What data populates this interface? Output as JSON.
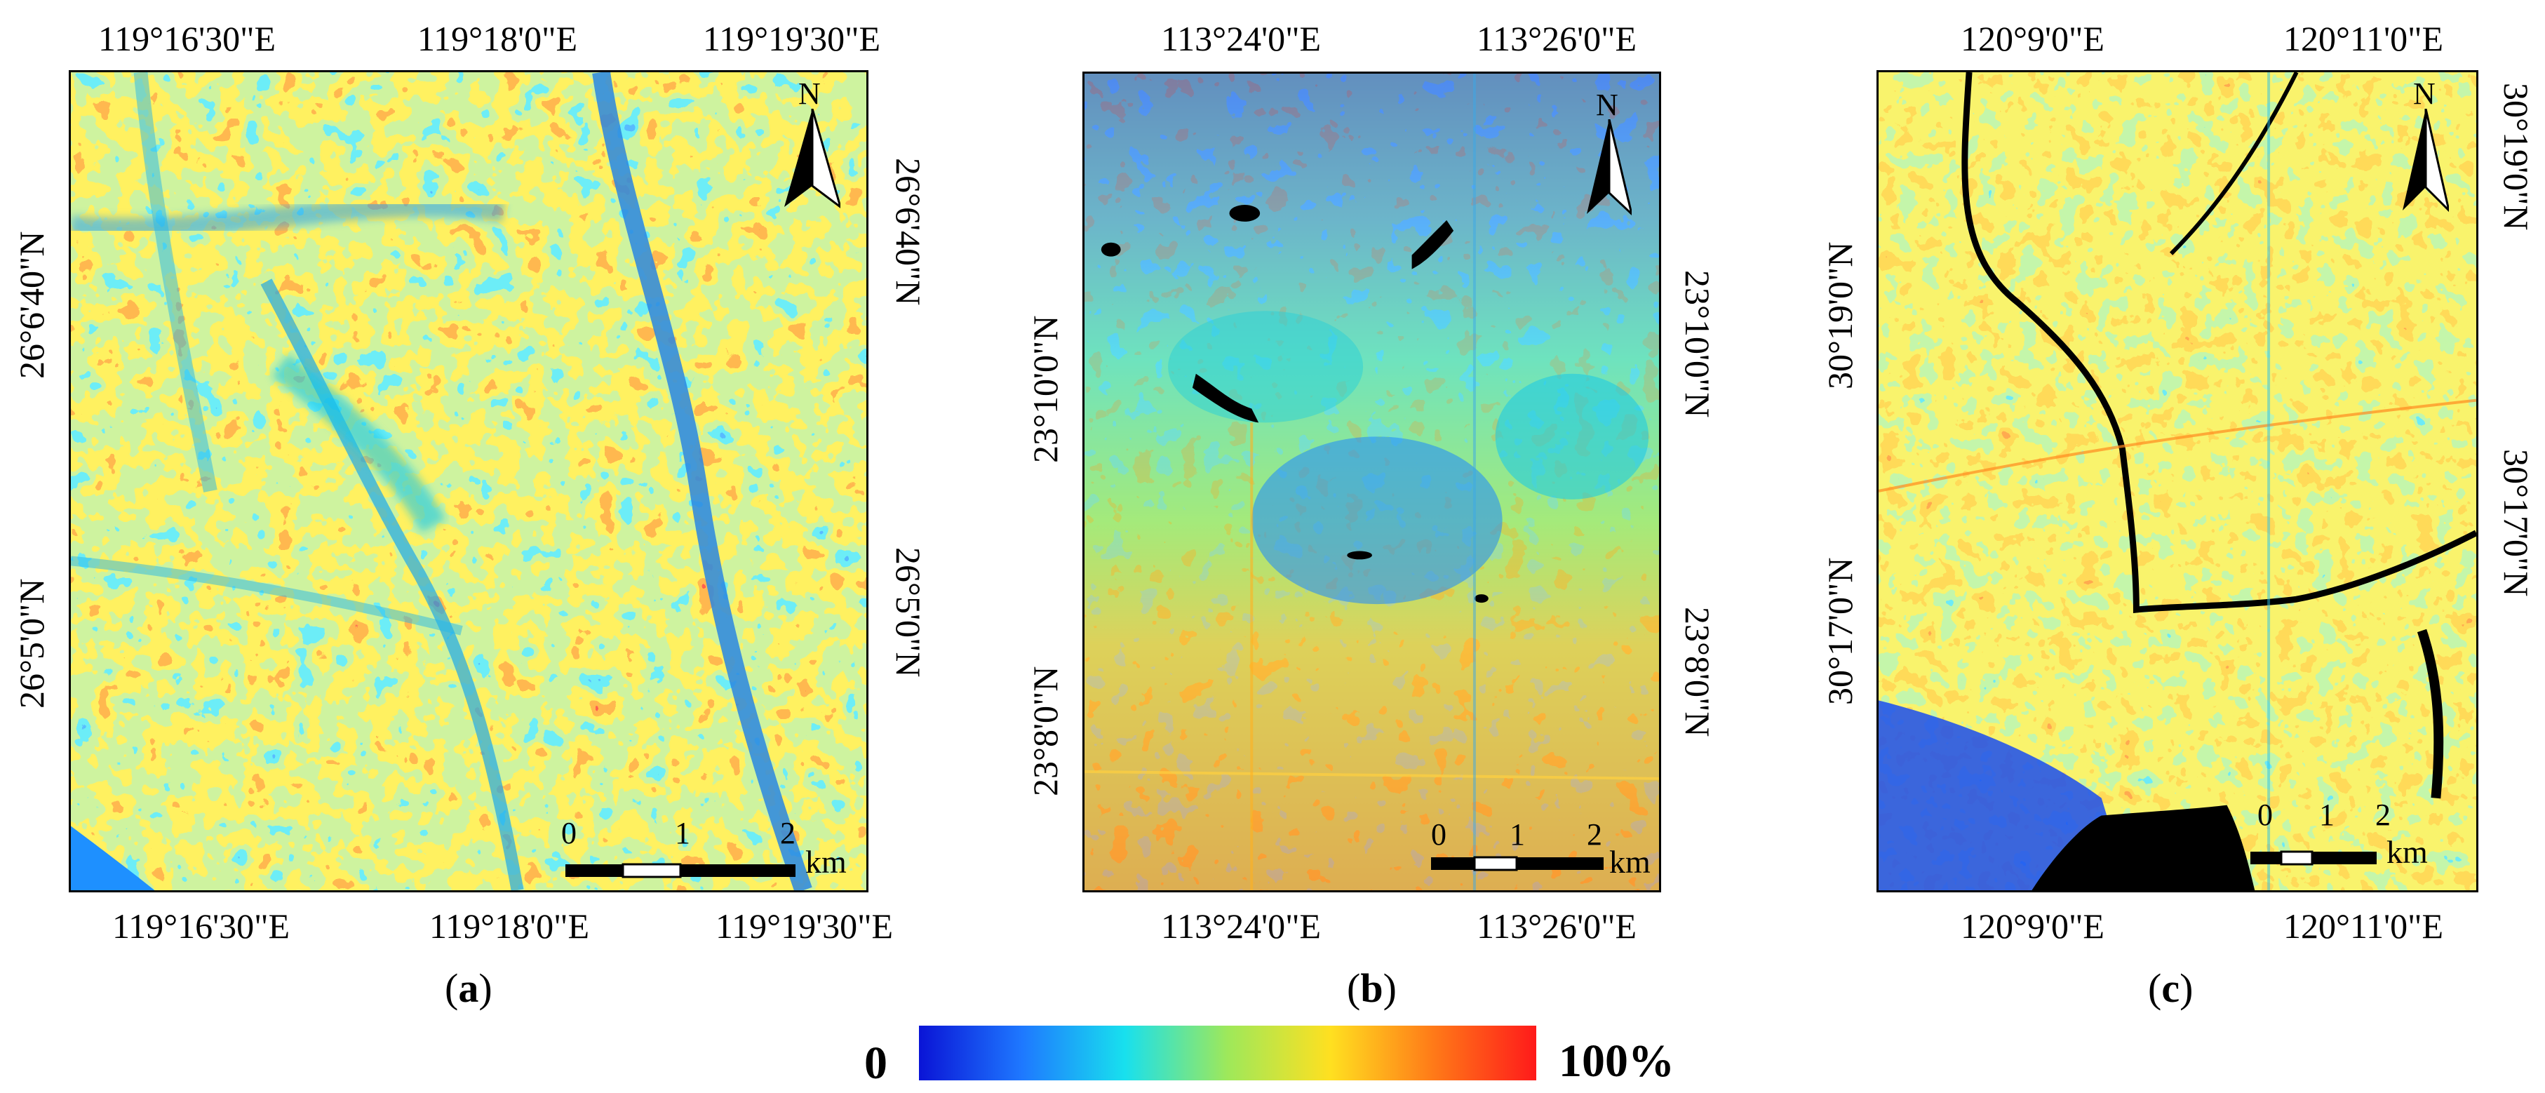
{
  "legend": {
    "min_label": "0",
    "max_label": "100%",
    "stops": [
      "#0a14d6",
      "#1e78ff",
      "#18e0ee",
      "#9ee85a",
      "#ffe020",
      "#ff7a18",
      "#ff1a1a"
    ]
  },
  "north_label": "N",
  "scale_unit": "km",
  "panels": [
    {
      "caption_open": "(",
      "caption_letter": "a",
      "caption_close": ")",
      "top_lon": [
        "119°16'30\"E",
        "119°18'0\"E",
        "119°19'30\"E"
      ],
      "bottom_lon": [
        "119°16'30\"E",
        "119°18'0\"E",
        "119°19'30\"E"
      ],
      "left_lat": [
        "26°6'40\"N",
        "26°5'0\"N"
      ],
      "right_lat": [
        "26°6'40\"N",
        "26°5'0\"N"
      ],
      "scale_ticks": [
        "0",
        "1",
        "2"
      ]
    },
    {
      "caption_open": "(",
      "caption_letter": "b",
      "caption_close": ")",
      "top_lon": [
        "113°24'0\"E",
        "113°26'0\"E"
      ],
      "bottom_lon": [
        "113°24'0\"E",
        "113°26'0\"E"
      ],
      "left_lat": [
        "23°10'0\"N",
        "23°8'0\"N"
      ],
      "right_lat": [
        "23°10'0\"N",
        "23°8'0\"N"
      ],
      "scale_ticks": [
        "0",
        "1",
        "2"
      ]
    },
    {
      "caption_open": "(",
      "caption_letter": "c",
      "caption_close": ")",
      "top_lon": [
        "120°9'0\"E",
        "120°11'0\"E"
      ],
      "bottom_lon": [
        "120°9'0\"E",
        "120°11'0\"E"
      ],
      "left_lat": [
        "30°19'0\"N",
        "30°17'0\"N"
      ],
      "right_lat": [
        "30°19'0\"N",
        "30°17'0\"N"
      ],
      "scale_ticks": [
        "0",
        "1",
        "2"
      ]
    }
  ]
}
